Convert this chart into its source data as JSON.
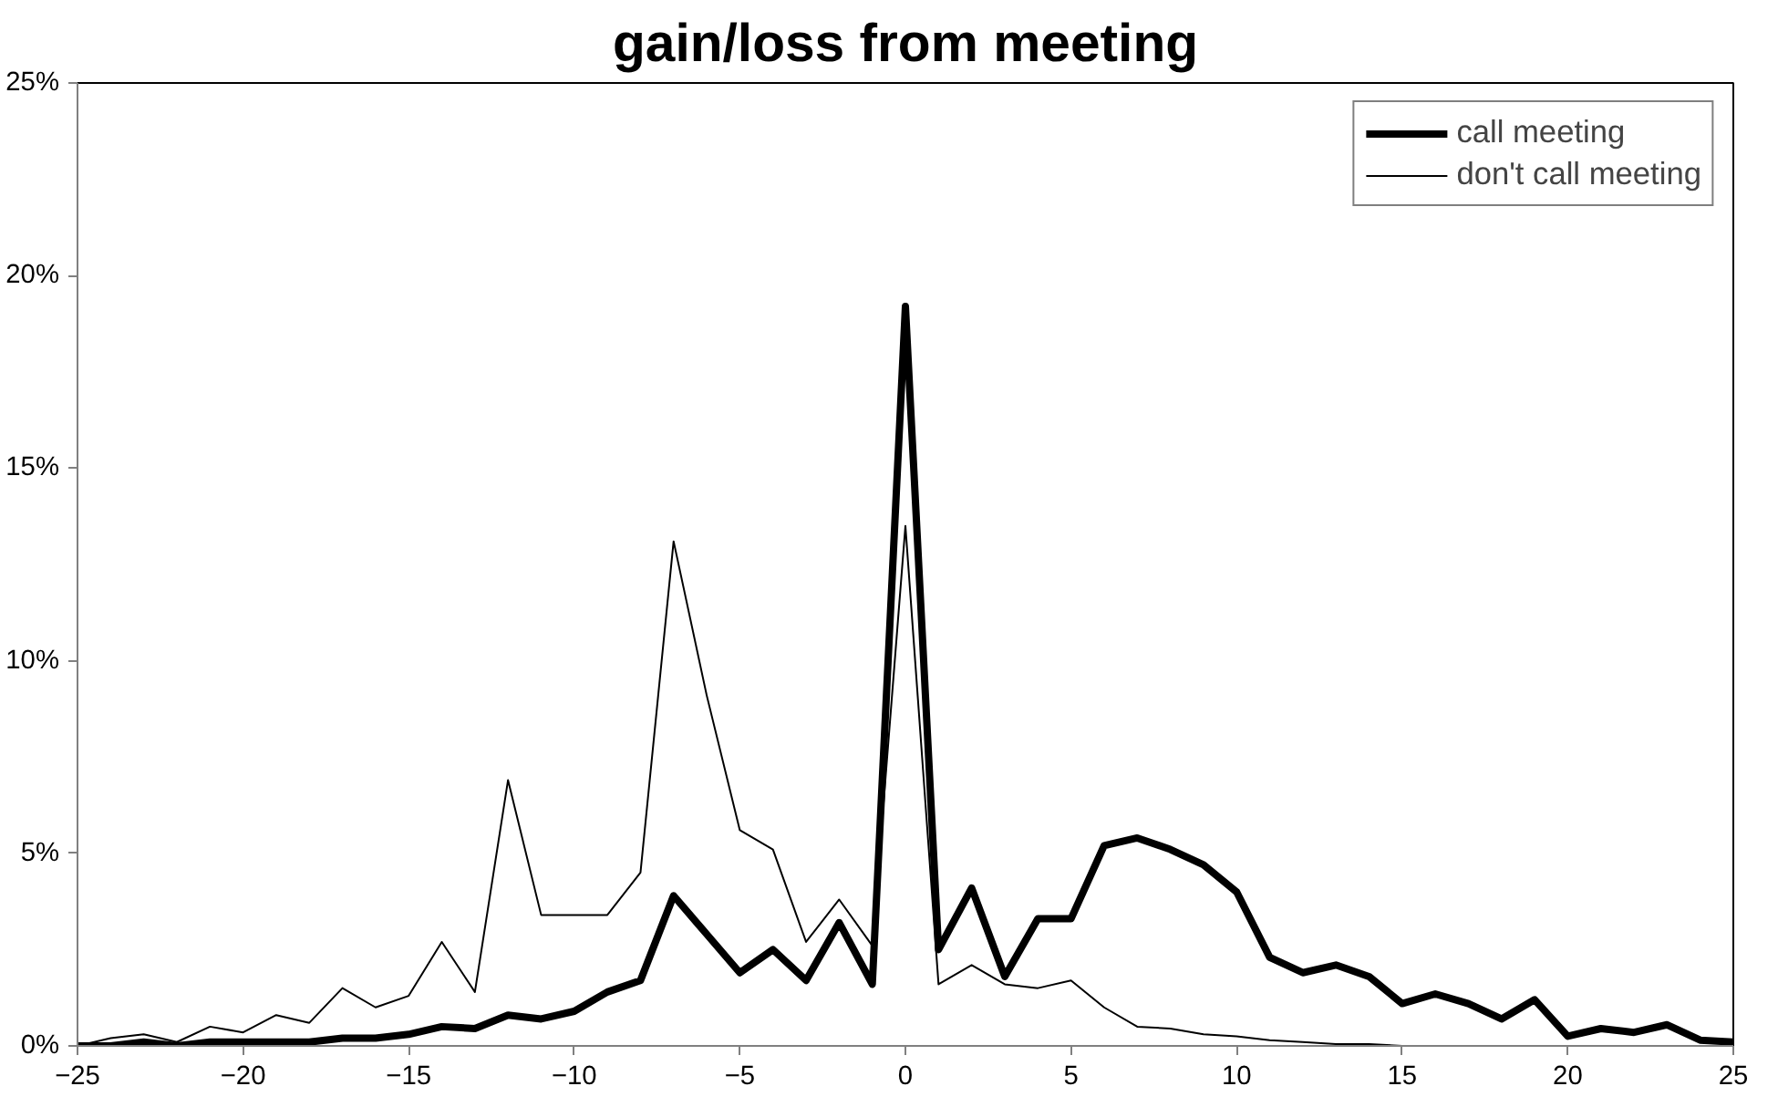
{
  "chart_data": {
    "type": "line",
    "title": "gain/loss from meeting",
    "x": [
      -25,
      -24,
      -23,
      -22,
      -21,
      -20,
      -19,
      -18,
      -17,
      -16,
      -15,
      -14,
      -13,
      -12,
      -11,
      -10,
      -9,
      -8,
      -7,
      -6,
      -5,
      -4,
      -3,
      -2,
      -1,
      0,
      1,
      2,
      3,
      4,
      5,
      6,
      7,
      8,
      9,
      10,
      11,
      12,
      13,
      14,
      15,
      16,
      17,
      18,
      19,
      20,
      21,
      22,
      23,
      24,
      25
    ],
    "series": [
      {
        "name": "call meeting",
        "color": "#000000",
        "values": [
          0,
          0,
          0.1,
          0,
          0.1,
          0.1,
          0.1,
          0.1,
          0.2,
          0.2,
          0.3,
          0.5,
          0.45,
          0.8,
          0.7,
          0.9,
          1.4,
          1.7,
          3.9,
          2.9,
          1.9,
          2.5,
          1.7,
          3.2,
          1.6,
          19.2,
          2.5,
          4.1,
          1.8,
          3.3,
          3.3,
          5.2,
          5.4,
          5.1,
          4.7,
          4.0,
          2.3,
          1.9,
          2.1,
          1.8,
          1.1,
          1.35,
          1.1,
          0.7,
          1.2,
          0.25,
          0.45,
          0.35,
          0.55,
          0.15,
          0.1
        ]
      },
      {
        "name": "don't call meeting",
        "color": "#000000",
        "values": [
          0,
          0.2,
          0.3,
          0.1,
          0.5,
          0.35,
          0.8,
          0.6,
          1.5,
          1.0,
          1.3,
          2.7,
          1.4,
          6.9,
          3.4,
          3.4,
          3.4,
          4.5,
          13.1,
          9.1,
          5.6,
          5.1,
          2.7,
          3.8,
          2.6,
          13.5,
          1.6,
          2.1,
          1.6,
          1.5,
          1.7,
          1.0,
          0.5,
          0.45,
          0.3,
          0.25,
          0.15,
          0.1,
          0.05,
          0.05,
          0,
          0,
          0,
          0,
          0,
          0,
          0,
          0,
          0,
          0,
          0
        ]
      }
    ],
    "xlim": [
      -25,
      25
    ],
    "xticks": [
      -25,
      -20,
      -15,
      -10,
      -5,
      0,
      5,
      10,
      15,
      20,
      25
    ],
    "ylim": [
      0,
      25
    ],
    "yticks": [
      {
        "value": 0,
        "label": "0%"
      },
      {
        "value": 5,
        "label": "5%"
      },
      {
        "value": 10,
        "label": "10%"
      },
      {
        "value": 15,
        "label": "15%"
      },
      {
        "value": 20,
        "label": "20%"
      },
      {
        "value": 25,
        "label": "25%"
      }
    ],
    "grid": false,
    "legend": "top right",
    "marker": "none",
    "line_style": "solid"
  }
}
